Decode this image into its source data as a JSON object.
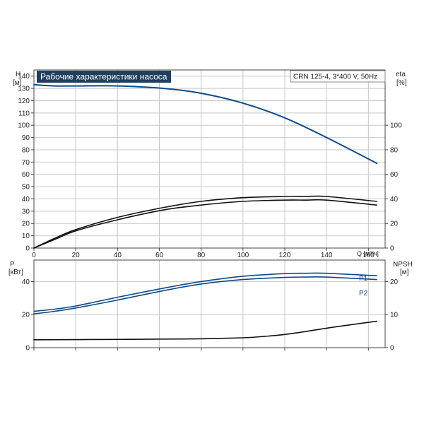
{
  "colors": {
    "head": "#0d4a8a",
    "power": "#0d4a8a",
    "eta": "#111111",
    "npsh": "#111111",
    "title_bg": "#1f3f5f",
    "title_fg": "#ffffff",
    "grid": "#c8c8c8"
  },
  "chart_data": [
    {
      "type": "line",
      "title": "Рабочие характеристики насоса",
      "subtitle": "CRN 125-4, 3*400 V, 50Hz",
      "xlabel": "Q [м³/ч]",
      "xlim": [
        0,
        168
      ],
      "xticks": [
        "0",
        "20",
        "40",
        "60",
        "80",
        "100",
        "120",
        "140",
        "160"
      ],
      "ylabel_left": "H",
      "ylabel_left_unit": "[м]",
      "ylim_left": [
        0,
        145
      ],
      "yticks_left": [
        "0",
        "10",
        "20",
        "30",
        "40",
        "50",
        "60",
        "70",
        "80",
        "90",
        "100",
        "110",
        "120",
        "130",
        "140"
      ],
      "ylabel_right": "eta",
      "ylabel_right_unit": "[%]",
      "ylim_right": [
        0,
        145
      ],
      "yticks_right": [
        "0",
        "20",
        "40",
        "60",
        "80",
        "100"
      ],
      "grid": true,
      "series": [
        {
          "axis": "left",
          "color": "head",
          "x": [
            0,
            10,
            20,
            40,
            62,
            80,
            100,
            120,
            140,
            164
          ],
          "y": [
            133,
            132,
            132,
            132,
            130,
            126,
            118,
            106,
            90,
            69
          ]
        },
        {
          "axis": "right",
          "color": "eta",
          "x": [
            0,
            10,
            20,
            40,
            62,
            80,
            100,
            120,
            130,
            140,
            164
          ],
          "y": [
            0,
            8,
            15,
            25,
            33,
            38,
            41,
            42,
            42,
            42,
            38
          ]
        },
        {
          "axis": "right",
          "color": "eta",
          "x": [
            0,
            10,
            20,
            40,
            62,
            80,
            100,
            120,
            130,
            140,
            164
          ],
          "y": [
            0,
            7,
            14,
            23,
            31,
            35,
            38,
            39,
            39,
            39,
            35
          ]
        }
      ]
    },
    {
      "type": "line",
      "xlim": [
        0,
        168
      ],
      "ylabel_left": "P",
      "ylabel_left_unit": "[кВт]",
      "ylim_left": [
        0,
        53
      ],
      "yticks_left": [
        "0",
        "20",
        "40"
      ],
      "ylabel_right": "NPSH",
      "ylabel_right_unit": "[м]",
      "ylim_right": [
        0,
        26.5
      ],
      "yticks_right": [
        "0",
        "10",
        "20"
      ],
      "grid": true,
      "series": [
        {
          "name": "P1",
          "axis": "left",
          "color": "power",
          "x": [
            0,
            10,
            20,
            40,
            62,
            80,
            100,
            120,
            130,
            140,
            164
          ],
          "y": [
            22,
            23.3,
            25.2,
            30.5,
            36,
            40,
            43.2,
            44.8,
            45,
            45,
            43.5
          ]
        },
        {
          "name": "P2",
          "axis": "left",
          "color": "power",
          "x": [
            0,
            10,
            20,
            40,
            62,
            80,
            100,
            120,
            130,
            140,
            164
          ],
          "y": [
            20.5,
            22,
            24,
            28.8,
            34.5,
            38.5,
            41.2,
            42.5,
            42.7,
            42.7,
            41.2
          ]
        },
        {
          "axis": "right",
          "color": "npsh",
          "x": [
            0,
            40,
            62,
            80,
            100,
            110,
            120,
            130,
            140,
            150,
            164
          ],
          "y": [
            2.4,
            2.5,
            2.6,
            2.7,
            3.0,
            3.4,
            4.0,
            4.9,
            5.9,
            6.8,
            8.0
          ]
        }
      ]
    }
  ]
}
